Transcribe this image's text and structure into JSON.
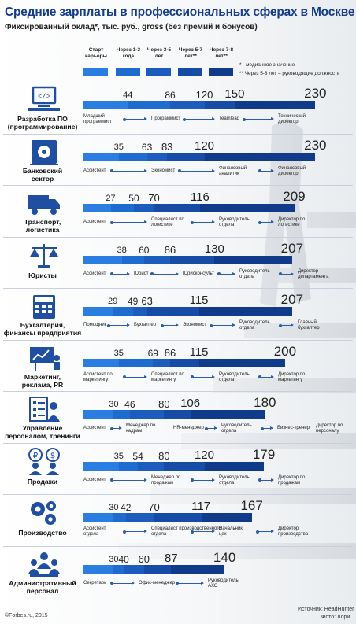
{
  "title": "Средние зарплаты в профессиональных сферах в Москве",
  "subtitle": "Фиксированный оклад*, тыс. руб., gross (без премий и бонусов)",
  "legend": [
    {
      "label": "Старт карьеры",
      "color": "#2a7de1"
    },
    {
      "label": "Через 1-3 года",
      "color": "#1f6cd0"
    },
    {
      "label": "Через 3-5 лет",
      "color": "#1b5cbc"
    },
    {
      "label": "Через 5-7 лет**",
      "color": "#174ca6"
    },
    {
      "label": "Через 7-8 лет**",
      "color": "#103b8a"
    }
  ],
  "notes": [
    "* - медианное значение",
    "** Через 5-8 лет – руководящие должности"
  ],
  "footer": {
    "copyright": "©Forbes.ru, 2015",
    "source": "Источник: HeadHunter",
    "photo": "Фото: Лори"
  },
  "chart_data": {
    "type": "bar",
    "title": "Средние зарплаты в профессиональных сферах в Москве",
    "subtitle": "Фиксированный оклад*, тыс. руб., gross (без премий и бонусов)",
    "stages": [
      "Старт карьеры",
      "Через 1-3 года",
      "Через 3-5 лет",
      "Через 5-7 лет**",
      "Через 7-8 лет**"
    ],
    "categories": [
      "Разработка ПО (программирование)",
      "Банковский сектор",
      "Транспорт, логистика",
      "Юристы",
      "Бухгалтерия, финансы предприятия",
      "Маркетинг, реклама, PR",
      "Управление персоналом, тренинги",
      "Продажи",
      "Производство",
      "Административный персонал"
    ],
    "series": [
      {
        "sector": "Разработка ПО (программирование)",
        "values": [
          44,
          86,
          120,
          150,
          230
        ],
        "positions": [
          "Младший программист",
          "Программист",
          "Teamlead",
          "Технический директор"
        ]
      },
      {
        "sector": "Банковский сектор",
        "values": [
          35,
          63,
          83,
          120,
          230
        ],
        "positions": [
          "Ассистент",
          "Экономист",
          "Финансовый аналитик",
          "Финансовый директор"
        ]
      },
      {
        "sector": "Транспорт, логистика",
        "values": [
          27,
          50,
          70,
          116,
          209
        ],
        "positions": [
          "Ассистент",
          "Специалист по логистике",
          "Руководитель отдела",
          "Директор по логистике"
        ]
      },
      {
        "sector": "Юристы",
        "values": [
          38,
          60,
          86,
          130,
          207
        ],
        "positions": [
          "Ассистент",
          "Юрист",
          "Юрисконсульт",
          "Руководитель отдела",
          "Директор департамента"
        ]
      },
      {
        "sector": "Бухгалтерия, финансы предприятия",
        "values": [
          29,
          49,
          63,
          115,
          207
        ],
        "positions": [
          "Помощник",
          "Бухгалтер",
          "Экономист",
          "Руководитель отдела",
          "Главный бухгалтер"
        ]
      },
      {
        "sector": "Маркетинг, реклама, PR",
        "values": [
          35,
          69,
          86,
          115,
          200
        ],
        "positions": [
          "Ассистент по маркетингу",
          "Специалист по маркетингу",
          "Руководитель отдела",
          "Директор по маркетингу"
        ]
      },
      {
        "sector": "Управление персоналом, тренинги",
        "values": [
          30,
          46,
          80,
          106,
          180
        ],
        "positions": [
          "Ассистент",
          "Менеджер по кадрам",
          "HR-менеджер",
          "Руководитель отдела",
          "Бизнес-тренер",
          "Директор по персоналу"
        ]
      },
      {
        "sector": "Продажи",
        "values": [
          35,
          54,
          80,
          120,
          179
        ],
        "positions": [
          "Ассистент",
          "Менеджер по продажам",
          "Руководитель отдела",
          "Директор по продажам"
        ]
      },
      {
        "sector": "Производство",
        "values": [
          30,
          42,
          70,
          117,
          167
        ],
        "positions": [
          "Ассистент отдела",
          "Специалист производственного отдела",
          "Начальник цех",
          "Директор производства"
        ]
      },
      {
        "sector": "Административный персонал",
        "values": [
          30,
          40,
          60,
          87,
          140
        ],
        "positions": [
          "Секретарь",
          "Офис-менеджер",
          "Руководитель АХО"
        ]
      }
    ]
  }
}
